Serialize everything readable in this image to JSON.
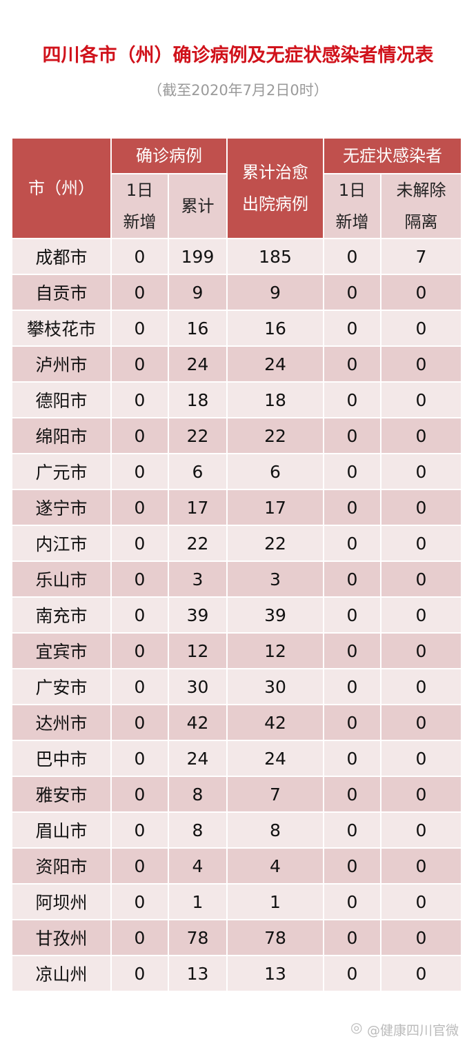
{
  "title": "四川各市（州）确诊病例及无症状感染者情况表",
  "subtitle": "（截至2020年7月2日0时）",
  "header": {
    "city": "市（州）",
    "confirmed": "确诊病例",
    "new_1": "1日新增",
    "total": "累计",
    "cured_l1": "累计治愈",
    "cured_l2": "出院病例",
    "asym": "无症状感染者",
    "asym_new": "1日新增",
    "asym_iso_l1": "未解除",
    "asym_iso_l2": "隔离"
  },
  "rows": [
    [
      "成都市",
      "0",
      "199",
      "185",
      "0",
      "7"
    ],
    [
      "自贡市",
      "0",
      "9",
      "9",
      "0",
      "0"
    ],
    [
      "攀枝花市",
      "0",
      "16",
      "16",
      "0",
      "0"
    ],
    [
      "泸州市",
      "0",
      "24",
      "24",
      "0",
      "0"
    ],
    [
      "德阳市",
      "0",
      "18",
      "18",
      "0",
      "0"
    ],
    [
      "绵阳市",
      "0",
      "22",
      "22",
      "0",
      "0"
    ],
    [
      "广元市",
      "0",
      "6",
      "6",
      "0",
      "0"
    ],
    [
      "遂宁市",
      "0",
      "17",
      "17",
      "0",
      "0"
    ],
    [
      "内江市",
      "0",
      "22",
      "22",
      "0",
      "0"
    ],
    [
      "乐山市",
      "0",
      "3",
      "3",
      "0",
      "0"
    ],
    [
      "南充市",
      "0",
      "39",
      "39",
      "0",
      "0"
    ],
    [
      "宜宾市",
      "0",
      "12",
      "12",
      "0",
      "0"
    ],
    [
      "广安市",
      "0",
      "30",
      "30",
      "0",
      "0"
    ],
    [
      "达州市",
      "0",
      "42",
      "42",
      "0",
      "0"
    ],
    [
      "巴中市",
      "0",
      "24",
      "24",
      "0",
      "0"
    ],
    [
      "雅安市",
      "0",
      "8",
      "7",
      "0",
      "0"
    ],
    [
      "眉山市",
      "0",
      "8",
      "8",
      "0",
      "0"
    ],
    [
      "资阳市",
      "0",
      "4",
      "4",
      "0",
      "0"
    ],
    [
      "阿坝州",
      "0",
      "1",
      "1",
      "0",
      "0"
    ],
    [
      "甘孜州",
      "0",
      "78",
      "78",
      "0",
      "0"
    ],
    [
      "凉山州",
      "0",
      "13",
      "13",
      "0",
      "0"
    ]
  ],
  "watermark": "@健康四川官微",
  "colors": {
    "header": "#c0504d",
    "subheader": "#e8cfd0",
    "row_odd": "#f3e8e8",
    "row_even": "#e7cdce",
    "title": "#d0121b"
  }
}
